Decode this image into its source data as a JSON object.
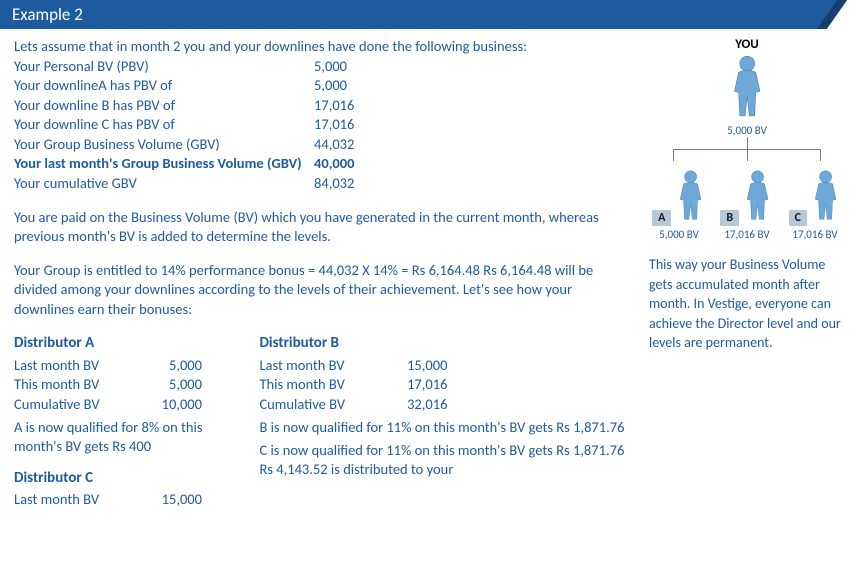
{
  "header": {
    "title": "Example 2"
  },
  "intro": {
    "lead": "Lets assume that in month 2 you and your downlines have done the following business:",
    "rows": [
      {
        "label": "Your Personal BV (PBV)",
        "value": "5,000",
        "bold": false
      },
      {
        "label": "Your downlineA has PBV of",
        "value": "5,000",
        "bold": false
      },
      {
        "label": "Your downline B has PBV of",
        "value": "17,016",
        "bold": false
      },
      {
        "label": "Your downline C has PBV of",
        "value": "17,016",
        "bold": false
      },
      {
        "label": "Your Group Business Volume (GBV)",
        "value": "44,032",
        "bold": false
      },
      {
        "label": "Your last month's Group Business Volume (GBV)",
        "value": "40,000",
        "bold": true
      },
      {
        "label": "Your cumulative GBV",
        "value": "84,032",
        "bold": false
      }
    ]
  },
  "para1": "You are paid on the Business Volume (BV) which you have generated in the current month, whereas previous month's BV is added to determine the levels.",
  "para2": "Your Group is entitled to 14% performance bonus = 44,032 X 14% = Rs 6,164.48 Rs 6,164.48 will be divided among your downlines according to the levels of their achievement. Let's see how your downlines earn their bonuses:",
  "distA": {
    "title": "Distributor A",
    "rows": [
      {
        "label": "Last month BV",
        "value": "5,000"
      },
      {
        "label": "This month BV",
        "value": "5,000"
      },
      {
        "label": "Cumulative BV",
        "value": "10,000"
      }
    ],
    "note": "A is now qualified for 8% on this month's BV gets Rs 400"
  },
  "distC": {
    "title": "Distributor C",
    "rows": [
      {
        "label": "Last month BV",
        "value": "15,000"
      }
    ]
  },
  "distB": {
    "title": "Distributor B",
    "rows": [
      {
        "label": "Last month BV",
        "value": "15,000"
      },
      {
        "label": "This month BV",
        "value": "17,016"
      },
      {
        "label": "Cumulative BV",
        "value": "32,016"
      }
    ],
    "note1": "B is now qualified for 11% on this month's BV gets Rs 1,871.76",
    "note2": "C is now qualified for 11% on this month's BV gets Rs 1,871.76 Rs 4,143.52 is distributed to your"
  },
  "tree": {
    "you_label": "YOU",
    "you_bv": "5,000 BV",
    "downlines": [
      {
        "tag": "A",
        "bv": "5,000 BV"
      },
      {
        "tag": "B",
        "bv": "17,016 BV"
      },
      {
        "tag": "C",
        "bv": "17,016 BV"
      }
    ],
    "person_fill": "#6ea8d8",
    "person_shadow": "#3d7ab3"
  },
  "side_para": "This way your Business Volume gets accumulated month after month. In Vestige, everyone can achieve the Director level and our levels are permanent."
}
